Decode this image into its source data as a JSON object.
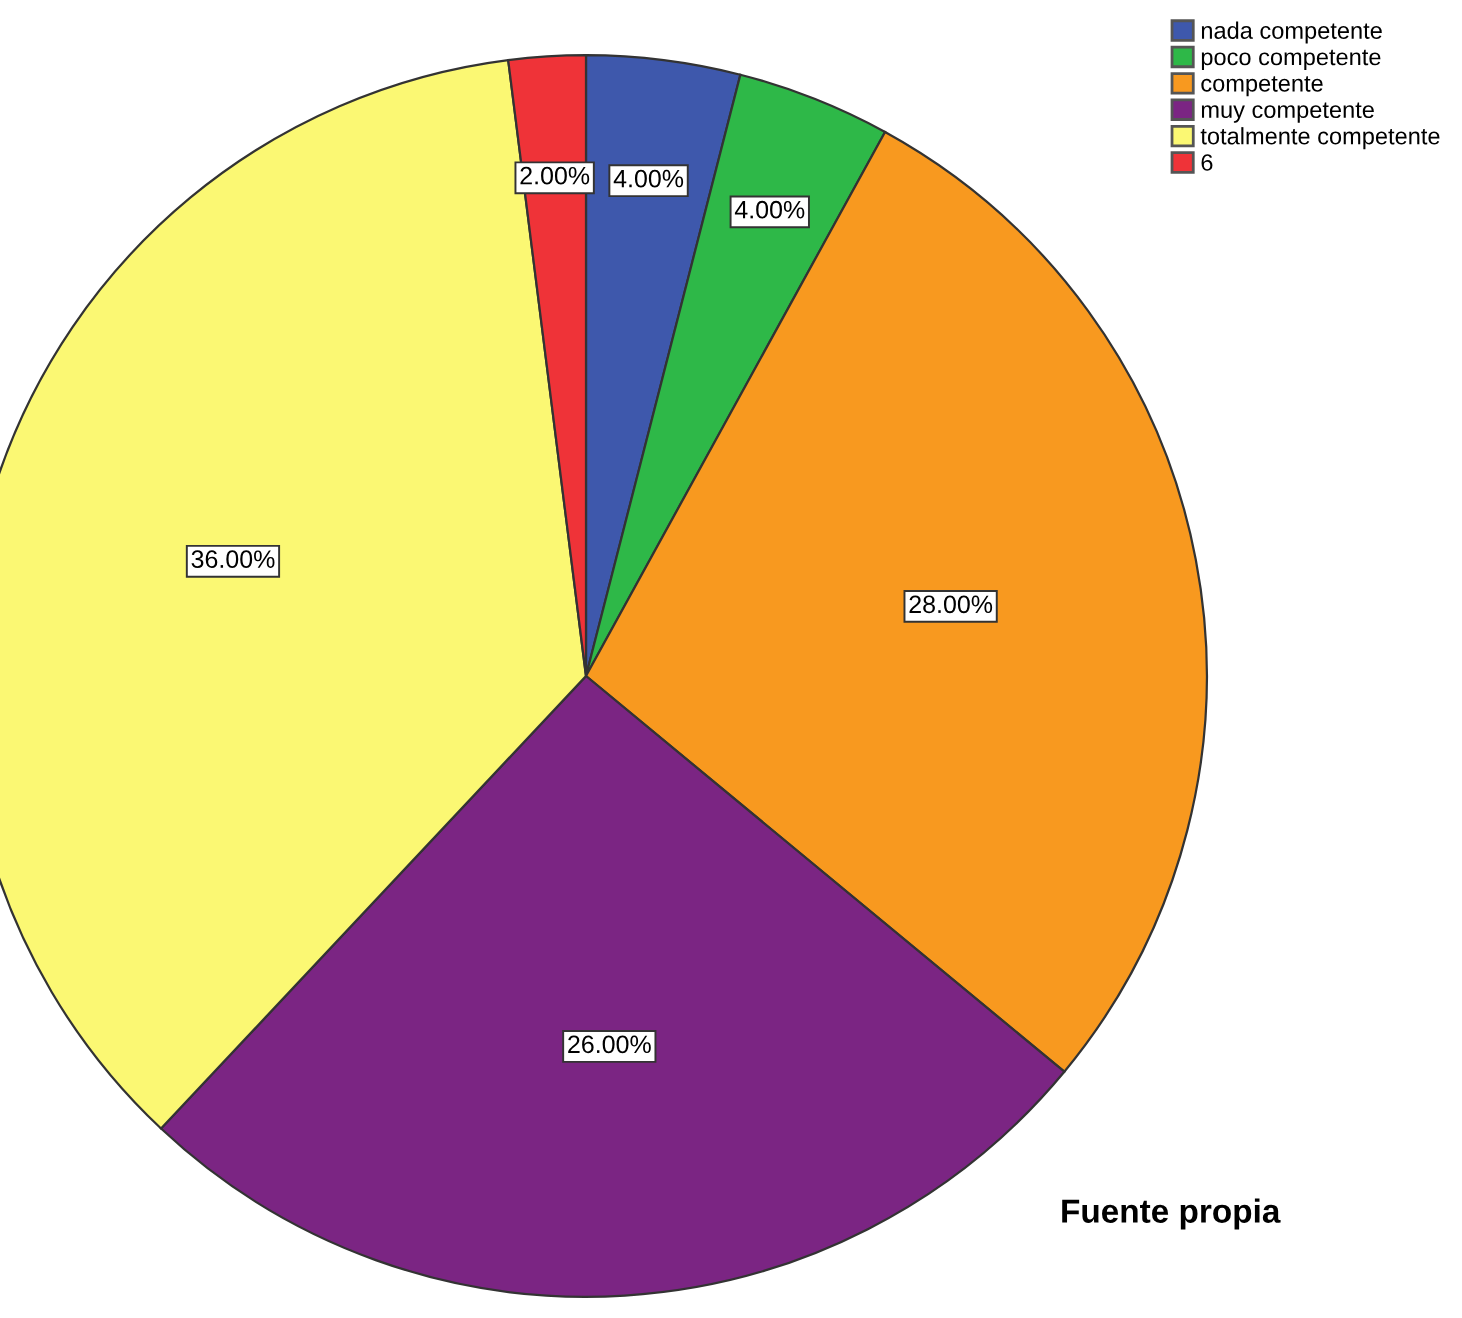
{
  "chart_data": {
    "type": "pie",
    "categories": [
      "nada competente",
      "poco competente",
      "competente",
      "muy competente",
      "totalmente competente",
      "6"
    ],
    "values": [
      4,
      4,
      28,
      26,
      36,
      2
    ],
    "colors": [
      "#3e58ac",
      "#2eb848",
      "#f8991f",
      "#7b2583",
      "#fbf873",
      "#ef3338"
    ],
    "value_labels": [
      "4.00%",
      "4.00%",
      "28.00%",
      "26.00%",
      "36.00%",
      "2.00%"
    ],
    "legend": "top right",
    "annotations": [
      "Fuente propia"
    ]
  }
}
